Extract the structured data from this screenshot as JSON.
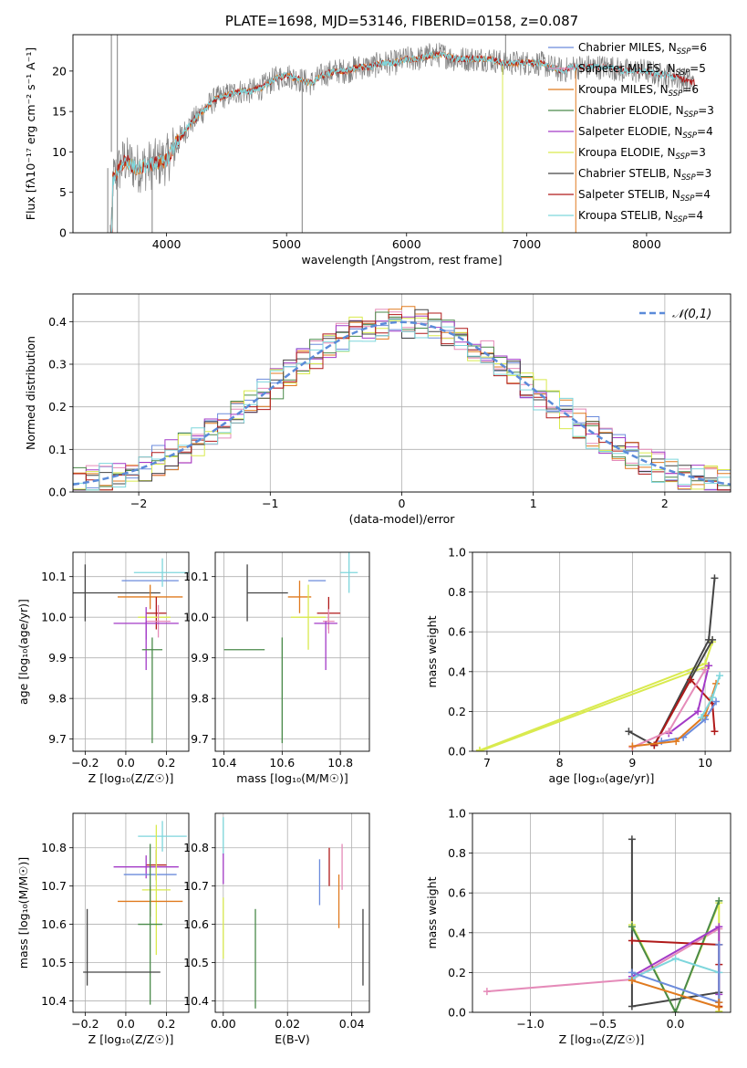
{
  "colors": {
    "chabrier_miles": "#6b8bdc",
    "salpeter_miles": "#e58bb9",
    "kroupa_miles": "#e07a1f",
    "chabrier_elodie": "#4a8a4a",
    "salpeter_elodie": "#a33ac7",
    "kroupa_elodie": "#d9ea4e",
    "chabrier_stelib": "#444444",
    "salpeter_stelib": "#b01a1a",
    "kroupa_stelib": "#7ed6dc",
    "gauss": "#5b8bd9",
    "spectrum": "#808080",
    "grid": "#b0b0b0"
  },
  "chart_data": [
    {
      "id": "spectrum",
      "type": "line",
      "title": "PLATE=1698, MJD=53146, FIBERID=0158, z=0.087",
      "xlabel": "wavelength [Angstrom, rest frame]",
      "ylabel": "Flux [fλ10⁻¹⁷ erg cm⁻² s⁻¹ A⁻¹]",
      "xlim": [
        3220,
        8700
      ],
      "ylim": [
        0,
        24.5
      ],
      "xticks": [
        4000,
        5000,
        6000,
        7000,
        8000
      ],
      "yticks": [
        0,
        5,
        10,
        15,
        20
      ],
      "grid": false,
      "legend_position": "top-right",
      "legend": [
        "Chabrier MILES, N_SSP=6",
        "Salpeter MILES, N_SSP=5",
        "Kroupa MILES, N_SSP=6",
        "Chabrier ELODIE, N_SSP=3",
        "Salpeter ELODIE, N_SSP=4",
        "Kroupa ELODIE, N_SSP=3",
        "Chabrier STELIB, N_SSP=3",
        "Salpeter STELIB, N_SSP=4",
        "Kroupa STELIB, N_SSP=4"
      ],
      "continuum": {
        "x": [
          3550,
          3650,
          3750,
          3900,
          4000,
          4100,
          4200,
          4300,
          4400,
          4500,
          4600,
          4700,
          4800,
          4900,
          5000,
          5100,
          5200,
          5300,
          5400,
          5500,
          5600,
          5700,
          5800,
          5900,
          6000,
          6100,
          6200,
          6300,
          6400,
          6500,
          6600,
          6700,
          6800,
          6900,
          7000,
          7100,
          7200,
          7300,
          7400,
          7500,
          7600,
          7700,
          7800,
          7900,
          8000,
          8100,
          8200,
          8300,
          8400
        ],
        "y": [
          6.5,
          9.0,
          8.0,
          8.5,
          9.0,
          11.5,
          13.5,
          15.0,
          16.5,
          17.0,
          17.5,
          17.5,
          18.0,
          19.0,
          19.5,
          19.0,
          18.5,
          19.5,
          20.0,
          20.0,
          20.5,
          20.5,
          21.0,
          21.0,
          21.5,
          21.5,
          22.0,
          22.0,
          21.5,
          21.5,
          21.5,
          21.5,
          21.0,
          21.0,
          21.0,
          21.0,
          20.5,
          20.0,
          20.5,
          20.5,
          20.5,
          20.5,
          20.0,
          20.0,
          20.0,
          19.5,
          19.5,
          19.0,
          18.5
        ]
      },
      "spikes_down": [
        3510,
        3590,
        3880,
        5130,
        6800,
        7410
      ],
      "spikes_up": [
        3540,
        3590,
        6825
      ]
    },
    {
      "id": "residuals",
      "type": "histogram",
      "xlabel": "(data-model)/error",
      "ylabel": "Normed distribution",
      "xlim": [
        -2.5,
        2.5
      ],
      "ylim": [
        0,
        0.465
      ],
      "xticks": [
        -2,
        -1,
        0,
        1,
        2
      ],
      "yticks": [
        0.0,
        0.1,
        0.2,
        0.3,
        0.4
      ],
      "grid": true,
      "legend": [
        "𝒩(0,1)"
      ],
      "legend_position": "top-right",
      "gaussian": {
        "mean": 0,
        "sigma": 1
      },
      "bin_width": 0.1,
      "bin_start": -2.5
    },
    {
      "id": "age_vs_Z",
      "type": "errorbar",
      "xlabel": "Z [log₁₀(Z/Z☉)]",
      "ylabel": "age  [log₁₀(age/yr)]",
      "xlim": [
        -0.26,
        0.31
      ],
      "ylim": [
        9.67,
        10.16
      ],
      "xticks": [
        -0.2,
        0.0,
        0.2
      ],
      "yticks": [
        9.7,
        9.8,
        9.9,
        10.0,
        10.1
      ],
      "grid": true,
      "points": [
        {
          "model": "chabrier_stelib",
          "x": -0.2,
          "y": 10.06,
          "xerr": 0.0,
          "yerr": 0.07
        },
        {
          "model": "chabrier_stelib",
          "x": -0.2,
          "y": 10.06,
          "xerr": 0.37,
          "yerr": 0.0
        },
        {
          "model": "chabrier_miles",
          "x": 0.12,
          "y": 10.09,
          "xerr": 0.14,
          "yerr": 0.0
        },
        {
          "model": "kroupa_stelib",
          "x": 0.18,
          "y": 10.11,
          "xerr": 0.14,
          "yerr": 0.035
        },
        {
          "model": "kroupa_miles",
          "x": 0.12,
          "y": 10.05,
          "xerr": 0.16,
          "yerr": 0.03
        },
        {
          "model": "salpeter_stelib",
          "x": 0.15,
          "y": 10.01,
          "xerr": 0.05,
          "yerr": 0.04
        },
        {
          "model": "kroupa_elodie",
          "x": 0.14,
          "y": 10.0,
          "xerr": 0.08,
          "yerr": 0.0
        },
        {
          "model": "salpeter_miles",
          "x": 0.16,
          "y": 9.99,
          "xerr": 0.06,
          "yerr": 0.04
        },
        {
          "model": "salpeter_elodie",
          "x": 0.1,
          "y": 9.985,
          "xerr": 0.16,
          "yerr": 0.04
        },
        {
          "model": "salpeter_elodie",
          "x": 0.1,
          "y": 9.93,
          "xerr": 0.0,
          "yerr": 0.06
        },
        {
          "model": "chabrier_elodie",
          "x": 0.13,
          "y": 9.92,
          "xerr": 0.05,
          "yerr": 0.0
        },
        {
          "model": "chabrier_elodie",
          "x": 0.13,
          "y": 9.82,
          "xerr": 0.0,
          "yerr": 0.13
        }
      ]
    },
    {
      "id": "age_vs_mass",
      "type": "errorbar",
      "xlabel": "mass [log₁₀(M/M☉)]",
      "ylabel": "",
      "xlim": [
        10.37,
        10.9
      ],
      "ylim": [
        9.67,
        10.16
      ],
      "xticks": [
        10.4,
        10.6,
        10.8
      ],
      "yticks": [
        9.7,
        9.8,
        9.9,
        10.0,
        10.1
      ],
      "grid": true,
      "points": [
        {
          "model": "chabrier_stelib",
          "x": 10.48,
          "y": 10.06,
          "xerr": 0.0,
          "yerr": 0.07
        },
        {
          "model": "chabrier_stelib",
          "x": 10.55,
          "y": 10.06,
          "xerr": 0.07,
          "yerr": 0.0
        },
        {
          "model": "kroupa_stelib",
          "x": 10.83,
          "y": 10.11,
          "xerr": 0.03,
          "yerr": 0.05
        },
        {
          "model": "chabrier_miles",
          "x": 10.72,
          "y": 10.09,
          "xerr": 0.03,
          "yerr": 0.0
        },
        {
          "model": "kroupa_miles",
          "x": 10.66,
          "y": 10.05,
          "xerr": 0.04,
          "yerr": 0.04
        },
        {
          "model": "salpeter_stelib",
          "x": 10.76,
          "y": 10.01,
          "xerr": 0.04,
          "yerr": 0.04
        },
        {
          "model": "kroupa_elodie",
          "x": 10.69,
          "y": 10.0,
          "xerr": 0.06,
          "yerr": 0.08
        },
        {
          "model": "salpeter_miles",
          "x": 10.76,
          "y": 9.99,
          "xerr": 0.02,
          "yerr": 0.03
        },
        {
          "model": "salpeter_elodie",
          "x": 10.75,
          "y": 9.985,
          "xerr": 0.04,
          "yerr": 0.0
        },
        {
          "model": "salpeter_elodie",
          "x": 10.75,
          "y": 9.93,
          "xerr": 0.0,
          "yerr": 0.06
        },
        {
          "model": "chabrier_elodie",
          "x": 10.47,
          "y": 9.92,
          "xerr": 0.07,
          "yerr": 0.0
        },
        {
          "model": "chabrier_elodie",
          "x": 10.6,
          "y": 9.82,
          "xerr": 0.0,
          "yerr": 0.13
        }
      ]
    },
    {
      "id": "weight_vs_age",
      "type": "line",
      "xlabel": "age  [log₁₀(age/yr)]",
      "ylabel": "mass weight",
      "xlim": [
        6.8,
        10.35
      ],
      "ylim": [
        0,
        1.0
      ],
      "xticks": [
        7,
        8,
        9,
        10
      ],
      "yticks": [
        0.0,
        0.2,
        0.4,
        0.6,
        0.8,
        1.0
      ],
      "grid": true,
      "series": [
        {
          "model": "kroupa_elodie",
          "x": [
            6.9,
            10.0,
            10.1
          ],
          "y": [
            0.005,
            0.44,
            0.55
          ]
        },
        {
          "model": "kroupa_elodie",
          "x": [
            6.9,
            10.05
          ],
          "y": [
            0.0,
            0.43
          ]
        },
        {
          "model": "chabrier_stelib",
          "x": [
            9.3,
            10.05,
            10.13
          ],
          "y": [
            0.03,
            0.56,
            0.87
          ]
        },
        {
          "model": "chabrier_stelib",
          "x": [
            8.95,
            9.3,
            10.1
          ],
          "y": [
            0.1,
            0.03,
            0.56
          ]
        },
        {
          "model": "salpeter_stelib",
          "x": [
            9.3,
            9.8,
            10.1,
            10.13
          ],
          "y": [
            0.03,
            0.36,
            0.24,
            0.1
          ]
        },
        {
          "model": "salpeter_elodie",
          "x": [
            9.5,
            9.9,
            10.05
          ],
          "y": [
            0.09,
            0.2,
            0.43
          ]
        },
        {
          "model": "salpeter_miles",
          "x": [
            9.0,
            9.5,
            10.0
          ],
          "y": [
            0.02,
            0.1,
            0.41
          ]
        },
        {
          "model": "chabrier_miles",
          "x": [
            9.4,
            9.7,
            10.0,
            10.15
          ],
          "y": [
            0.05,
            0.07,
            0.16,
            0.25
          ]
        },
        {
          "model": "kroupa_miles",
          "x": [
            9.0,
            9.6,
            10.0,
            10.15
          ],
          "y": [
            0.025,
            0.05,
            0.18,
            0.34
          ]
        },
        {
          "model": "kroupa_stelib",
          "x": [
            9.95,
            10.1,
            10.2
          ],
          "y": [
            0.17,
            0.27,
            0.38
          ]
        }
      ]
    },
    {
      "id": "mass_vs_Z",
      "type": "errorbar",
      "xlabel": "Z [log₁₀(Z/Z☉)]",
      "ylabel": "mass [log₁₀(M/M☉)]",
      "xlim": [
        -0.26,
        0.31
      ],
      "ylim": [
        10.37,
        10.89
      ],
      "xticks": [
        -0.2,
        0.0,
        0.2
      ],
      "yticks": [
        10.4,
        10.5,
        10.6,
        10.7,
        10.8
      ],
      "grid": true,
      "points": [
        {
          "model": "kroupa_stelib",
          "x": 0.18,
          "y": 10.83,
          "xerr": 0.12,
          "yerr": 0.04
        },
        {
          "model": "salpeter_stelib",
          "x": 0.15,
          "y": 10.755,
          "xerr": 0.05,
          "yerr": 0.04
        },
        {
          "model": "salpeter_elodie",
          "x": 0.1,
          "y": 10.75,
          "xerr": 0.16,
          "yerr": 0.03
        },
        {
          "model": "chabrier_miles",
          "x": 0.12,
          "y": 10.73,
          "xerr": 0.13,
          "yerr": 0.0
        },
        {
          "model": "kroupa_elodie",
          "x": 0.15,
          "y": 10.69,
          "xerr": 0.07,
          "yerr": 0.17
        },
        {
          "model": "kroupa_miles",
          "x": 0.12,
          "y": 10.66,
          "xerr": 0.16,
          "yerr": 0.04
        },
        {
          "model": "chabrier_elodie",
          "x": 0.12,
          "y": 10.6,
          "xerr": 0.06,
          "yerr": 0.21
        },
        {
          "model": "chabrier_stelib",
          "x": -0.02,
          "y": 10.475,
          "xerr": 0.19,
          "yerr": 0.0
        },
        {
          "model": "chabrier_stelib",
          "x": -0.19,
          "y": 10.54,
          "xerr": 0.0,
          "yerr": 0.1
        }
      ]
    },
    {
      "id": "mass_vs_ebv",
      "type": "errorbar",
      "xlabel": "E(B-V)",
      "ylabel": "",
      "xlim": [
        -0.0025,
        0.0455
      ],
      "ylim": [
        10.37,
        10.89
      ],
      "xticks": [
        0.0,
        0.02,
        0.04
      ],
      "yticks": [
        10.4,
        10.5,
        10.6,
        10.7,
        10.8
      ],
      "grid": true,
      "points": [
        {
          "model": "kroupa_stelib",
          "x": 0.0,
          "y": 10.83,
          "xerr": 0.0,
          "yerr": 0.05
        },
        {
          "model": "salpeter_elodie",
          "x": 0.0,
          "y": 10.745,
          "xerr": 0.0,
          "yerr": 0.04
        },
        {
          "model": "kroupa_elodie",
          "x": 0.0,
          "y": 10.59,
          "xerr": 0.0,
          "yerr": 0.08
        },
        {
          "model": "chabrier_elodie",
          "x": 0.01,
          "y": 10.51,
          "xerr": 0.0,
          "yerr": 0.13
        },
        {
          "model": "chabrier_miles",
          "x": 0.03,
          "y": 10.71,
          "xerr": 0.0,
          "yerr": 0.06
        },
        {
          "model": "salpeter_stelib",
          "x": 0.033,
          "y": 10.75,
          "xerr": 0.0,
          "yerr": 0.05
        },
        {
          "model": "kroupa_miles",
          "x": 0.036,
          "y": 10.66,
          "xerr": 0.0,
          "yerr": 0.07
        },
        {
          "model": "salpeter_miles",
          "x": 0.037,
          "y": 10.75,
          "xerr": 0.0,
          "yerr": 0.06
        },
        {
          "model": "chabrier_stelib",
          "x": 0.0435,
          "y": 10.54,
          "xerr": 0.0,
          "yerr": 0.1
        }
      ]
    },
    {
      "id": "weight_vs_Z",
      "type": "line",
      "xlabel": "Z [log₁₀(Z/Z☉)]",
      "ylabel": "mass weight",
      "xlim": [
        -1.4,
        0.38
      ],
      "ylim": [
        0,
        1.0
      ],
      "xticks": [
        -1.0,
        -0.5,
        0.0
      ],
      "yticks": [
        0.0,
        0.2,
        0.4,
        0.6,
        0.8,
        1.0
      ],
      "grid": true,
      "series": [
        {
          "model": "salpeter_miles",
          "x": [
            -1.3,
            -0.3,
            0.3
          ],
          "y": [
            0.105,
            0.165,
            0.42
          ]
        },
        {
          "model": "chabrier_stelib",
          "x": [
            -0.3,
            -0.3,
            0.3
          ],
          "y": [
            0.87,
            0.03,
            0.1
          ]
        },
        {
          "model": "kroupa_elodie",
          "x": [
            -0.3,
            0.0,
            0.3,
            0.3
          ],
          "y": [
            0.44,
            0.0,
            0.55,
            0.005
          ]
        },
        {
          "model": "chabrier_elodie",
          "x": [
            -0.3,
            0.0,
            0.3
          ],
          "y": [
            0.43,
            0.0,
            0.56
          ]
        },
        {
          "model": "salpeter_stelib",
          "x": [
            -0.3,
            0.3,
            0.3,
            0.3
          ],
          "y": [
            0.36,
            0.34,
            0.24,
            0.03
          ]
        },
        {
          "model": "salpeter_elodie",
          "x": [
            -0.3,
            0.3,
            0.3
          ],
          "y": [
            0.18,
            0.43,
            0.09
          ]
        },
        {
          "model": "kroupa_stelib",
          "x": [
            -0.3,
            0.0,
            0.3
          ],
          "y": [
            0.17,
            0.27,
            0.2
          ]
        },
        {
          "model": "chabrier_miles",
          "x": [
            -0.3,
            0.3,
            0.3
          ],
          "y": [
            0.2,
            0.05,
            0.34
          ]
        },
        {
          "model": "kroupa_miles",
          "x": [
            -0.3,
            0.3,
            0.3
          ],
          "y": [
            0.16,
            0.025,
            0.05
          ]
        }
      ]
    }
  ]
}
